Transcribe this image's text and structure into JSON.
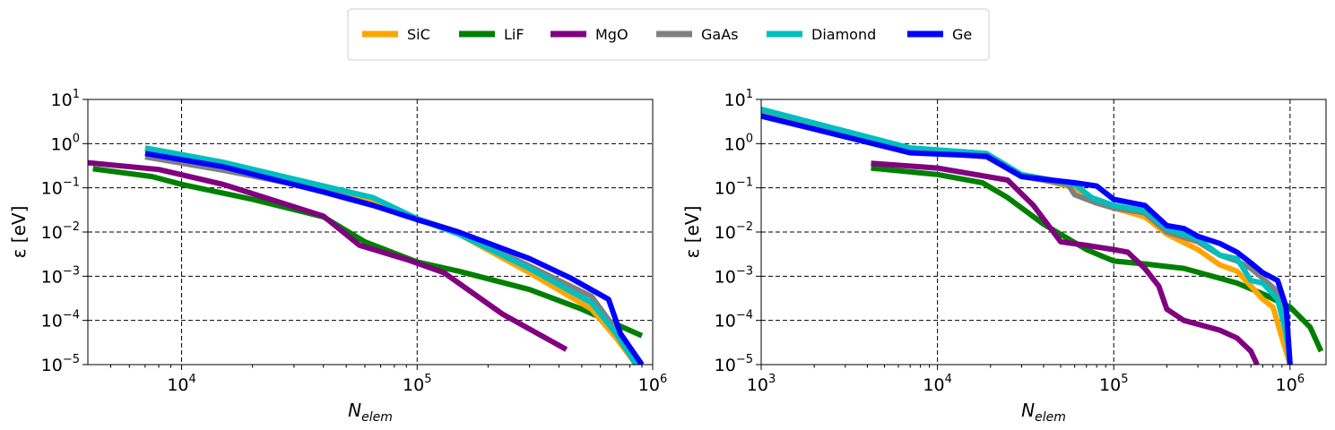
{
  "legend": {
    "entries": [
      {
        "name": "SiC",
        "color": "#FFA500"
      },
      {
        "name": "LiF",
        "color": "#008000"
      },
      {
        "name": "MgO",
        "color": "#800080"
      },
      {
        "name": "GaAs",
        "color": "#808080"
      },
      {
        "name": "Diamond",
        "color": "#00BFBF"
      },
      {
        "name": "Ge",
        "color": "#0000FF"
      }
    ]
  },
  "chart_data": [
    {
      "type": "line",
      "xscale": "log",
      "yscale": "log",
      "xlim": [
        4000,
        1000000
      ],
      "ylim": [
        1e-05,
        10
      ],
      "xlabel": "N",
      "xlabel_sub": "elem",
      "ylabel": "ε [eV]",
      "xticks": [
        {
          "base": "10",
          "exp": "4",
          "value": 10000
        },
        {
          "base": "10",
          "exp": "5",
          "value": 100000
        },
        {
          "base": "10",
          "exp": "6",
          "value": 1000000
        }
      ],
      "yticks": [
        {
          "base": "10",
          "exp": "−5",
          "value": 1e-05
        },
        {
          "base": "10",
          "exp": "−4",
          "value": 0.0001
        },
        {
          "base": "10",
          "exp": "−3",
          "value": 0.001
        },
        {
          "base": "10",
          "exp": "−2",
          "value": 0.01
        },
        {
          "base": "10",
          "exp": "−1",
          "value": 0.1
        },
        {
          "base": "10",
          "exp": "0",
          "value": 1
        },
        {
          "base": "10",
          "exp": "1",
          "value": 10
        }
      ],
      "grid": true,
      "series": [
        {
          "name": "LiF",
          "color": "#008000",
          "points": [
            [
              4200,
              0.27
            ],
            [
              7500,
              0.18
            ],
            [
              10000,
              0.12
            ],
            [
              20000,
              0.055
            ],
            [
              40000,
              0.022
            ],
            [
              60000,
              0.006
            ],
            [
              100000,
              0.0021
            ],
            [
              150000,
              0.0013
            ],
            [
              300000,
              0.0005
            ],
            [
              500000,
              0.00018
            ],
            [
              900000,
              4.5e-05
            ]
          ]
        },
        {
          "name": "MgO",
          "color": "#800080",
          "points": [
            [
              4000,
              0.37
            ],
            [
              8000,
              0.26
            ],
            [
              15000,
              0.12
            ],
            [
              40000,
              0.023
            ],
            [
              57000,
              0.005
            ],
            [
              90000,
              0.0024
            ],
            [
              130000,
              0.0012
            ],
            [
              230000,
              0.00014
            ],
            [
              430000,
              2.2e-05
            ]
          ]
        },
        {
          "name": "SiC",
          "color": "#FFA500",
          "points": [
            [
              7000,
              0.75
            ],
            [
              15000,
              0.35
            ],
            [
              40000,
              0.1
            ],
            [
              65000,
              0.05
            ],
            [
              100000,
              0.02
            ],
            [
              150000,
              0.009
            ],
            [
              300000,
              0.0012
            ],
            [
              550000,
              0.00018
            ],
            [
              700000,
              4e-05
            ],
            [
              850000,
              1e-05
            ]
          ]
        },
        {
          "name": "GaAs",
          "color": "#808080",
          "points": [
            [
              7000,
              0.5
            ],
            [
              15000,
              0.25
            ],
            [
              40000,
              0.09
            ],
            [
              65000,
              0.04
            ],
            [
              100000,
              0.02
            ],
            [
              150000,
              0.01
            ],
            [
              300000,
              0.0017
            ],
            [
              550000,
              0.00035
            ],
            [
              700000,
              6e-05
            ],
            [
              870000,
              1e-05
            ]
          ]
        },
        {
          "name": "Diamond",
          "color": "#00BFBF",
          "points": [
            [
              7000,
              0.8
            ],
            [
              15000,
              0.38
            ],
            [
              40000,
              0.11
            ],
            [
              65000,
              0.06
            ],
            [
              100000,
              0.02
            ],
            [
              150000,
              0.009
            ],
            [
              300000,
              0.0015
            ],
            [
              550000,
              0.00025
            ],
            [
              700000,
              5e-05
            ],
            [
              850000,
              1e-05
            ]
          ]
        },
        {
          "name": "Ge",
          "color": "#0000FF",
          "points": [
            [
              7000,
              0.6
            ],
            [
              15000,
              0.3
            ],
            [
              40000,
              0.08
            ],
            [
              65000,
              0.04
            ],
            [
              100000,
              0.019
            ],
            [
              150000,
              0.01
            ],
            [
              300000,
              0.0025
            ],
            [
              450000,
              0.0009
            ],
            [
              650000,
              0.0003
            ],
            [
              730000,
              5e-05
            ],
            [
              900000,
              1e-05
            ]
          ]
        }
      ]
    },
    {
      "type": "line",
      "xscale": "log",
      "yscale": "log",
      "xlim": [
        1000,
        1600000
      ],
      "ylim": [
        1e-05,
        10
      ],
      "xlabel": "N",
      "xlabel_sub": "elem",
      "ylabel": "ε [eV]",
      "xticks": [
        {
          "base": "10",
          "exp": "3",
          "value": 1000
        },
        {
          "base": "10",
          "exp": "4",
          "value": 10000
        },
        {
          "base": "10",
          "exp": "5",
          "value": 100000
        },
        {
          "base": "10",
          "exp": "6",
          "value": 1000000
        }
      ],
      "yticks": [
        {
          "base": "10",
          "exp": "−5",
          "value": 1e-05
        },
        {
          "base": "10",
          "exp": "−4",
          "value": 0.0001
        },
        {
          "base": "10",
          "exp": "−3",
          "value": 0.001
        },
        {
          "base": "10",
          "exp": "−2",
          "value": 0.01
        },
        {
          "base": "10",
          "exp": "−1",
          "value": 0.1
        },
        {
          "base": "10",
          "exp": "0",
          "value": 1
        },
        {
          "base": "10",
          "exp": "1",
          "value": 10
        }
      ],
      "grid": true,
      "series": [
        {
          "name": "LiF",
          "color": "#008000",
          "points": [
            [
              4200,
              0.28
            ],
            [
              10000,
              0.2
            ],
            [
              18000,
              0.13
            ],
            [
              25000,
              0.06
            ],
            [
              40000,
              0.015
            ],
            [
              70000,
              0.004
            ],
            [
              100000,
              0.0022
            ],
            [
              150000,
              0.0019
            ],
            [
              250000,
              0.0015
            ],
            [
              400000,
              0.0009
            ],
            [
              500000,
              0.0007
            ],
            [
              700000,
              0.0004
            ],
            [
              1000000,
              0.0002
            ],
            [
              1300000,
              7e-05
            ],
            [
              1500000,
              2e-05
            ]
          ]
        },
        {
          "name": "MgO",
          "color": "#800080",
          "points": [
            [
              4200,
              0.36
            ],
            [
              10000,
              0.28
            ],
            [
              25000,
              0.15
            ],
            [
              35000,
              0.04
            ],
            [
              50000,
              0.006
            ],
            [
              70000,
              0.005
            ],
            [
              100000,
              0.004
            ],
            [
              120000,
              0.0035
            ],
            [
              150000,
              0.0015
            ],
            [
              180000,
              0.0006
            ],
            [
              200000,
              0.00018
            ],
            [
              250000,
              0.0001
            ],
            [
              400000,
              6e-05
            ],
            [
              500000,
              4e-05
            ],
            [
              600000,
              2e-05
            ],
            [
              650000,
              1e-05
            ]
          ]
        },
        {
          "name": "SiC",
          "color": "#FFA500",
          "points": [
            [
              1000,
              5.5
            ],
            [
              7000,
              0.75
            ],
            [
              19000,
              0.52
            ],
            [
              30000,
              0.2
            ],
            [
              60000,
              0.1
            ],
            [
              80000,
              0.05
            ],
            [
              100000,
              0.035
            ],
            [
              150000,
              0.022
            ],
            [
              200000,
              0.009
            ],
            [
              300000,
              0.004
            ],
            [
              400000,
              0.0018
            ],
            [
              500000,
              0.0013
            ],
            [
              600000,
              0.0006
            ],
            [
              700000,
              0.0003
            ],
            [
              800000,
              0.0002
            ],
            [
              900000,
              4e-05
            ],
            [
              1000000,
              1e-05
            ]
          ]
        },
        {
          "name": "GaAs",
          "color": "#808080",
          "points": [
            [
              1000,
              5.5
            ],
            [
              7000,
              0.7
            ],
            [
              19000,
              0.5
            ],
            [
              30000,
              0.18
            ],
            [
              55000,
              0.12
            ],
            [
              60000,
              0.07
            ],
            [
              80000,
              0.045
            ],
            [
              100000,
              0.035
            ],
            [
              150000,
              0.027
            ],
            [
              200000,
              0.01
            ],
            [
              300000,
              0.006
            ],
            [
              400000,
              0.003
            ],
            [
              500000,
              0.0022
            ],
            [
              600000,
              0.0015
            ],
            [
              700000,
              0.0009
            ],
            [
              850000,
              0.00045
            ],
            [
              950000,
              8e-05
            ],
            [
              1000000,
              1e-05
            ]
          ]
        },
        {
          "name": "Diamond",
          "color": "#00BFBF",
          "points": [
            [
              1000,
              6
            ],
            [
              7000,
              0.8
            ],
            [
              19000,
              0.6
            ],
            [
              30000,
              0.2
            ],
            [
              60000,
              0.12
            ],
            [
              75000,
              0.06
            ],
            [
              100000,
              0.04
            ],
            [
              150000,
              0.03
            ],
            [
              200000,
              0.012
            ],
            [
              300000,
              0.007
            ],
            [
              400000,
              0.003
            ],
            [
              500000,
              0.0025
            ],
            [
              600000,
              0.0008
            ],
            [
              700000,
              0.0007
            ],
            [
              850000,
              0.0003
            ],
            [
              950000,
              5e-05
            ],
            [
              1000000,
              1e-05
            ]
          ]
        },
        {
          "name": "Ge",
          "color": "#0000FF",
          "points": [
            [
              1000,
              4.2
            ],
            [
              7000,
              0.62
            ],
            [
              19000,
              0.52
            ],
            [
              30000,
              0.18
            ],
            [
              60000,
              0.13
            ],
            [
              80000,
              0.11
            ],
            [
              100000,
              0.055
            ],
            [
              150000,
              0.04
            ],
            [
              200000,
              0.014
            ],
            [
              250000,
              0.012
            ],
            [
              300000,
              0.008
            ],
            [
              400000,
              0.0055
            ],
            [
              500000,
              0.0035
            ],
            [
              600000,
              0.002
            ],
            [
              700000,
              0.0012
            ],
            [
              850000,
              0.0008
            ],
            [
              950000,
              0.0002
            ],
            [
              1000000,
              1e-05
            ]
          ]
        }
      ]
    }
  ]
}
